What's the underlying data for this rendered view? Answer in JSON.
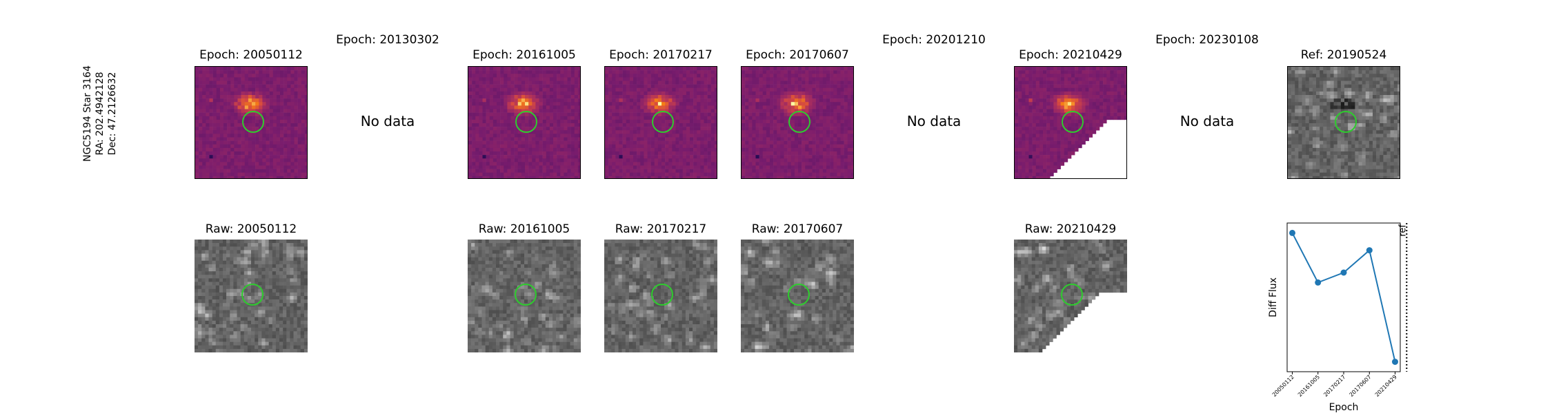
{
  "target": {
    "name": "NGC5194 Star 3164",
    "ra": "RA: 202.4942128",
    "dec": "Dec: 47.2126632"
  },
  "epochs": [
    {
      "title": "Epoch: 20050112",
      "raw_title": "Raw: 20050112",
      "has_data": true,
      "seed": 11,
      "cut": false
    },
    {
      "title": "Epoch: 20130302",
      "raw_title": "",
      "has_data": false
    },
    {
      "title": "Epoch: 20161005",
      "raw_title": "Raw: 20161005",
      "has_data": true,
      "seed": 23,
      "cut": false
    },
    {
      "title": "Epoch: 20170217",
      "raw_title": "Raw: 20170217",
      "has_data": true,
      "seed": 37,
      "cut": false
    },
    {
      "title": "Epoch: 20170607",
      "raw_title": "Raw: 20170607",
      "has_data": true,
      "seed": 41,
      "cut": false
    },
    {
      "title": "Epoch: 20201210",
      "raw_title": "",
      "has_data": false
    },
    {
      "title": "Epoch: 20210429",
      "raw_title": "Raw: 20210429",
      "has_data": true,
      "seed": 53,
      "cut": true
    },
    {
      "title": "Epoch: 20230108",
      "raw_title": "",
      "has_data": false
    }
  ],
  "no_data_label": "No data",
  "reference": {
    "title": "Ref: 20190524"
  },
  "colors": {
    "aperture": "#2ecc2e",
    "line": "#1f77b4",
    "panel_border": "#000000"
  },
  "chart_data": {
    "type": "line",
    "title": "",
    "xlabel": "Epoch",
    "ylabel": "Diff Flux",
    "categories": [
      "20050112",
      "20161005",
      "20170217",
      "20170607",
      "20210429"
    ],
    "values": [
      0.92,
      0.52,
      0.6,
      0.78,
      -0.12
    ],
    "ylim": [
      -0.2,
      1.0
    ],
    "ref_line": {
      "position": 4.45,
      "label": "ref"
    },
    "grid": false,
    "legend": "none"
  }
}
